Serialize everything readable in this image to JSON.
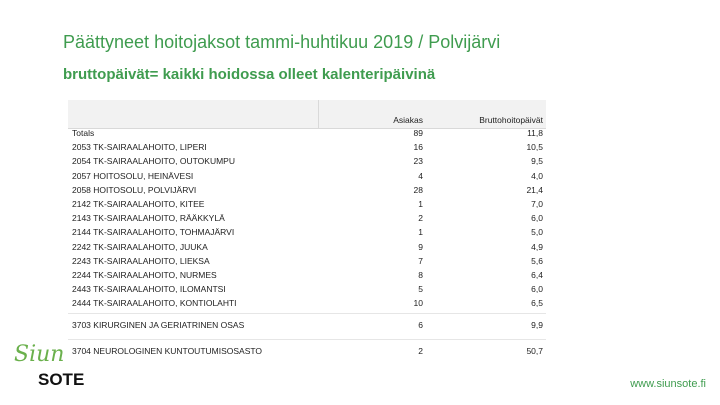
{
  "header": {
    "title": "Päättyneet hoitojaksot tammi-huhtikuu 2019 / Polvijärvi",
    "subtitle": "bruttopäivät= kaikki hoidossa olleet kalenteripäivinä"
  },
  "table": {
    "columns": [
      "Asiakas",
      "Bruttohoitopäivät"
    ],
    "rows": [
      [
        "Totals",
        "89",
        "11,8"
      ],
      [
        "2053 TK-SAIRAALAHOITO, LIPERI",
        "16",
        "10,5"
      ],
      [
        "2054 TK-SAIRAALAHOITO, OUTOKUMPU",
        "23",
        "9,5"
      ],
      [
        "2057 HOITOSOLU, HEINÄVESI",
        "4",
        "4,0"
      ],
      [
        "2058 HOITOSOLU, POLVIJÄRVI",
        "28",
        "21,4"
      ],
      [
        "2142 TK-SAIRAALAHOITO, KITEE",
        "1",
        "7,0"
      ],
      [
        "2143 TK-SAIRAALAHOITO, RÄÄKKYLÄ",
        "2",
        "6,0"
      ],
      [
        "2144 TK-SAIRAALAHOITO, TOHMAJÄRVI",
        "1",
        "5,0"
      ],
      [
        "2242 TK-SAIRAALAHOITO, JUUKA",
        "9",
        "4,9"
      ],
      [
        "2243 TK-SAIRAALAHOITO, LIEKSA",
        "7",
        "5,6"
      ],
      [
        "2244 TK-SAIRAALAHOITO, NURMES",
        "8",
        "6,4"
      ],
      [
        "2443 TK-SAIRAALAHOITO, ILOMANTSI",
        "5",
        "6,0"
      ],
      [
        "2444 TK-SAIRAALAHOITO, KONTIOLAHTI",
        "10",
        "6,5"
      ],
      [
        "3703 KIRURGINEN JA GERIATRINEN OSAS",
        "6",
        "9,9"
      ],
      [
        "3704 NEUROLOGINEN KUNTOUTUMISOSASTO",
        "2",
        "50,7"
      ]
    ]
  },
  "logo": {
    "script": "Siun",
    "bold": "SOTE"
  },
  "footer": {
    "url": "www.siunsote.fi"
  }
}
